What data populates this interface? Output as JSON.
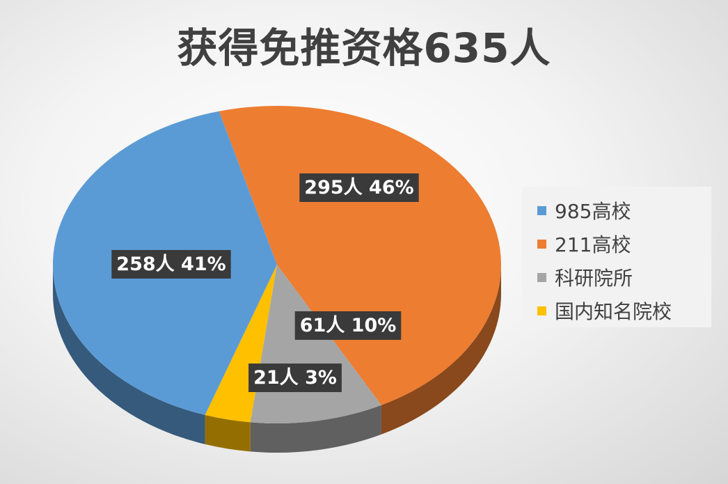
{
  "chart_data": {
    "type": "pie",
    "title": "获得免推资格635人",
    "legend_position": "right",
    "slices": [
      {
        "name": "985高校",
        "value": 258,
        "percent": "41%",
        "label": "258人 41%",
        "color": "#5b9bd5"
      },
      {
        "name": "211高校",
        "value": 295,
        "percent": "46%",
        "label": "295人 46%",
        "color": "#ed7d31"
      },
      {
        "name": "科研院所",
        "value": 61,
        "percent": "10%",
        "label": "61人 10%",
        "color": "#a5a5a5"
      },
      {
        "name": "国内知名院校",
        "value": 21,
        "percent": "3%",
        "label": "21人 3%",
        "color": "#ffc000"
      }
    ]
  },
  "legend": {
    "items": [
      {
        "label": "985高校",
        "color": "#5b9bd5"
      },
      {
        "label": "211高校",
        "color": "#ed7d31"
      },
      {
        "label": "科研院所",
        "color": "#a5a5a5"
      },
      {
        "label": "国内知名院校",
        "color": "#ffc000"
      }
    ]
  }
}
